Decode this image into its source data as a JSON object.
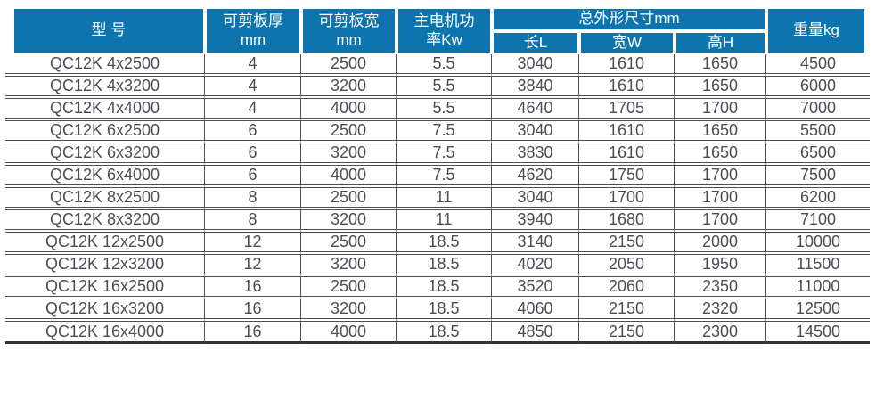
{
  "colors": {
    "header_bg": "#0d74ad",
    "header_text": "#ffffff",
    "body_text": "#4a4e54",
    "grid_line": "#4f4f4f"
  },
  "table": {
    "header": {
      "model": "型 号",
      "thickness": [
        "可剪板厚",
        "mm"
      ],
      "plate_width": [
        "可剪板宽",
        "mm"
      ],
      "power": [
        "主电机功",
        "率Kw"
      ],
      "dimensions_group": "总外形尺寸mm",
      "length": "长L",
      "width_overall": "宽W",
      "height": "高H",
      "weight": "重量kg"
    },
    "rows": [
      {
        "model": "QC12K 4x2500",
        "thickness": "4",
        "plate_width": "2500",
        "power": "5.5",
        "length": "3040",
        "width_overall": "1610",
        "height": "1650",
        "weight": "4500"
      },
      {
        "model": "QC12K 4x3200",
        "thickness": "4",
        "plate_width": "3200",
        "power": "5.5",
        "length": "3840",
        "width_overall": "1610",
        "height": "1650",
        "weight": "6000"
      },
      {
        "model": "QC12K 4x4000",
        "thickness": "4",
        "plate_width": "4000",
        "power": "5.5",
        "length": "4640",
        "width_overall": "1705",
        "height": "1700",
        "weight": "7000"
      },
      {
        "model": "QC12K 6x2500",
        "thickness": "6",
        "plate_width": "2500",
        "power": "7.5",
        "length": "3040",
        "width_overall": "1610",
        "height": "1650",
        "weight": "5500"
      },
      {
        "model": "QC12K 6x3200",
        "thickness": "6",
        "plate_width": "3200",
        "power": "7.5",
        "length": "3830",
        "width_overall": "1610",
        "height": "1650",
        "weight": "6500"
      },
      {
        "model": "QC12K 6x4000",
        "thickness": "6",
        "plate_width": "4000",
        "power": "7.5",
        "length": "4620",
        "width_overall": "1750",
        "height": "1700",
        "weight": "7500"
      },
      {
        "model": "QC12K 8x2500",
        "thickness": "8",
        "plate_width": "2500",
        "power": "11",
        "length": "3040",
        "width_overall": "1700",
        "height": "1700",
        "weight": "6200"
      },
      {
        "model": "QC12K 8x3200",
        "thickness": "8",
        "plate_width": "3200",
        "power": "11",
        "length": "3940",
        "width_overall": "1680",
        "height": "1700",
        "weight": "7100"
      },
      {
        "model": "QC12K 12x2500",
        "thickness": "12",
        "plate_width": "2500",
        "power": "18.5",
        "length": "3140",
        "width_overall": "2150",
        "height": "2000",
        "weight": "10000"
      },
      {
        "model": "QC12K 12x3200",
        "thickness": "12",
        "plate_width": "3200",
        "power": "18.5",
        "length": "4020",
        "width_overall": "2050",
        "height": "1950",
        "weight": "11500"
      },
      {
        "model": "QC12K 16x2500",
        "thickness": "16",
        "plate_width": "2500",
        "power": "18.5",
        "length": "3520",
        "width_overall": "2060",
        "height": "2350",
        "weight": "11000"
      },
      {
        "model": "QC12K 16x3200",
        "thickness": "16",
        "plate_width": "3200",
        "power": "18.5",
        "length": "4060",
        "width_overall": "2150",
        "height": "2320",
        "weight": "12500"
      },
      {
        "model": "QC12K 16x4000",
        "thickness": "16",
        "plate_width": "4000",
        "power": "18.5",
        "length": "4850",
        "width_overall": "2150",
        "height": "2300",
        "weight": "14500"
      }
    ]
  }
}
